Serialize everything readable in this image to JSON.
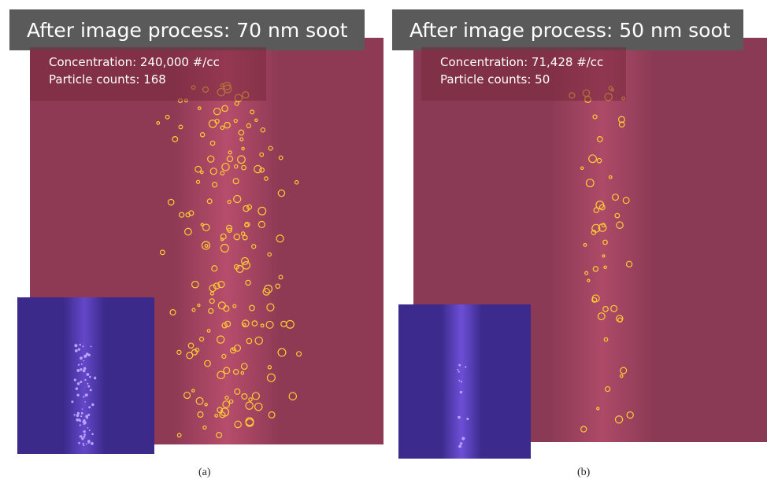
{
  "panels": [
    {
      "title": "After image process: 70 nm soot",
      "concentration": "Concentration: 240,000 #/cc",
      "counts": "Particle counts: 168",
      "caption": "(a)"
    },
    {
      "title": "After image process: 50 nm soot",
      "concentration": "Concentration: 71,428 #/cc",
      "counts": "Particle counts: 50",
      "caption": "(b)"
    }
  ]
}
